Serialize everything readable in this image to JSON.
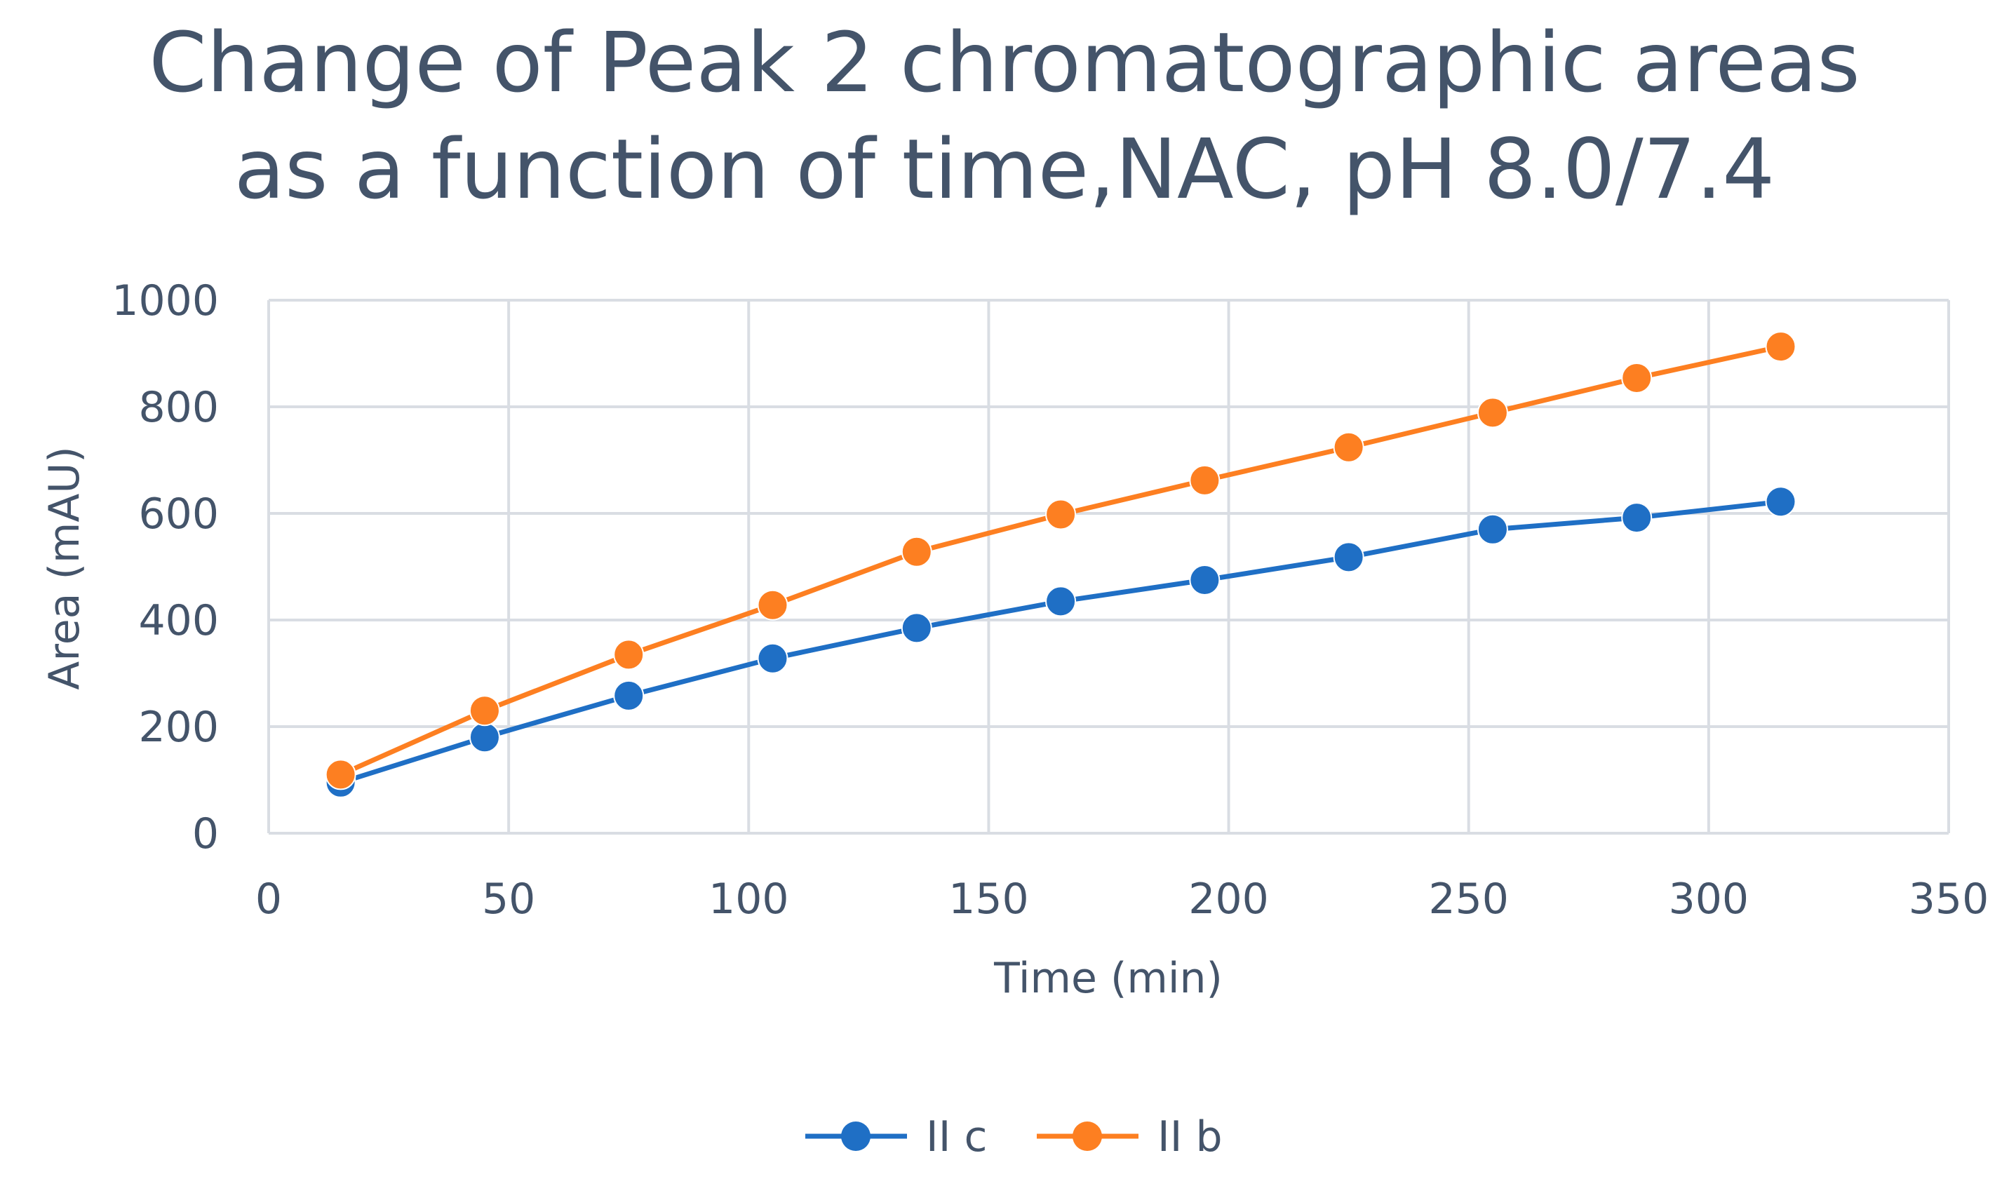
{
  "chart_data": {
    "type": "line",
    "title": [
      "Change of Peak 2 chromatographic areas",
      "as a function of time,NAC, pH 8.0/7.4"
    ],
    "xlabel": "Time (min)",
    "ylabel": "Area (mAU)",
    "xlim": [
      0,
      350
    ],
    "ylim": [
      0,
      1000
    ],
    "xticks": [
      0,
      50,
      100,
      150,
      200,
      250,
      300,
      350
    ],
    "yticks": [
      0,
      200,
      400,
      600,
      800,
      1000
    ],
    "grid": true,
    "legend_position": "bottom",
    "x": [
      15,
      45,
      75,
      105,
      135,
      165,
      195,
      225,
      255,
      285,
      315
    ],
    "series": [
      {
        "name": "II c",
        "color": "#1f6fc5",
        "values": [
          95,
          180,
          258,
          328,
          385,
          435,
          475,
          518,
          570,
          592,
          622
        ]
      },
      {
        "name": "II b",
        "color": "#fd7f21",
        "values": [
          110,
          230,
          335,
          428,
          528,
          598,
          662,
          724,
          789,
          854,
          913
        ]
      }
    ]
  },
  "colors": {
    "grid": "#d9dde3",
    "text": "#44546a"
  }
}
